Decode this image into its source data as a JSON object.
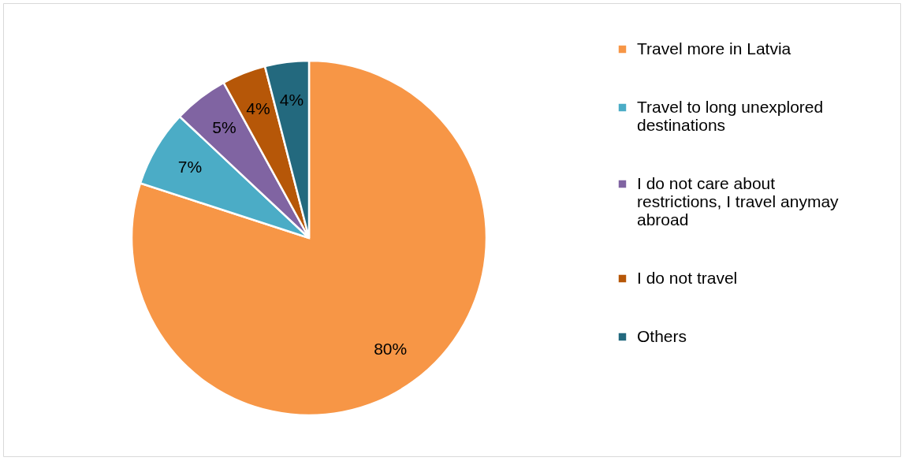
{
  "chart_data": {
    "type": "pie",
    "categories": [
      "Travel more in Latvia",
      "Travel to long unexplored destinations",
      "I do not care about restrictions, I travel anymay abroad",
      "I do not travel",
      "Others"
    ],
    "values": [
      80,
      7,
      5,
      4,
      4
    ],
    "value_labels": [
      "80%",
      "7%",
      "5%",
      "4%",
      "4%"
    ],
    "colors": [
      "#f79646",
      "#4bacc6",
      "#8064a2",
      "#b65708",
      "#23697e"
    ],
    "legend": "right"
  }
}
